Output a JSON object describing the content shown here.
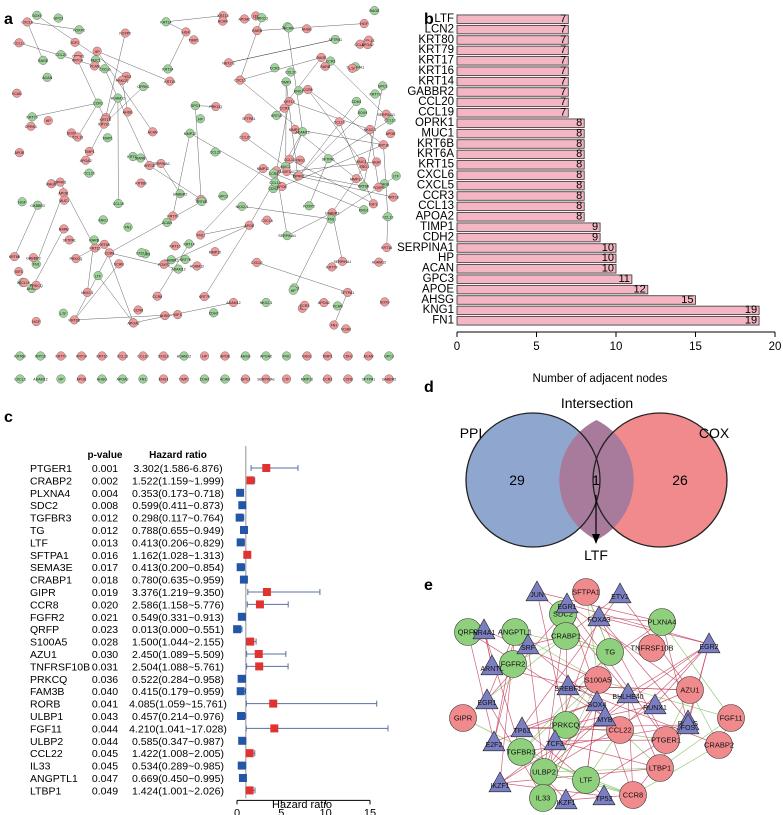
{
  "panels": {
    "a": "a",
    "b": "b",
    "c": "c",
    "d": "d",
    "e": "e"
  },
  "network_a": {
    "labels": [
      "KRT6B",
      "KRT15",
      "KRT79",
      "KRT14",
      "KRT16",
      "CCL13",
      "CCL20",
      "CXCL6",
      "ADAM12",
      "HP",
      "APOE",
      "AHSG",
      "APOA2",
      "FN1",
      "KNG1",
      "TIMP1",
      "CDH2",
      "ACAN",
      "GPC3",
      "SERPINA1",
      "LTF",
      "MMP12",
      "CCR3",
      "CCR8",
      "SFTPA1",
      "GABBR2",
      "RAGE",
      "CCL19",
      "OPRK1",
      "MUC1",
      "HGF",
      "NKX2-1",
      "RARB",
      "FOXP2",
      "PRKCQ",
      "SOX9",
      "IGF1",
      "VCAN"
    ]
  },
  "chart_data": [
    {
      "type": "bar",
      "orientation": "horizontal",
      "title": "",
      "xlabel": "Number of adjacent nodes",
      "ylabel": "",
      "xlim": [
        0,
        20
      ],
      "xticks": [
        0,
        5,
        10,
        15,
        20
      ],
      "categories": [
        "LTF",
        "LCN2",
        "KRT80",
        "KRT79",
        "KRT17",
        "KRT16",
        "KRT14",
        "GABBR2",
        "CCL20",
        "CCL19",
        "OPRK1",
        "MUC1",
        "KRT6B",
        "KRT6A",
        "KRT15",
        "CXCL6",
        "CXCL5",
        "CCR3",
        "CCL13",
        "APOA2",
        "TIMP1",
        "CDH2",
        "SERPINA1",
        "HP",
        "ACAN",
        "GPC3",
        "APOE",
        "AHSG",
        "KNG1",
        "FN1"
      ],
      "values": [
        7,
        7,
        7,
        7,
        7,
        7,
        7,
        7,
        7,
        7,
        8,
        8,
        8,
        8,
        8,
        8,
        8,
        8,
        8,
        8,
        9,
        9,
        10,
        10,
        10,
        11,
        12,
        15,
        19,
        19
      ],
      "color": "#f4b6c2"
    },
    {
      "type": "forest",
      "xlabel": "Hazard ratio",
      "xlim": [
        0,
        15
      ],
      "xticks": [
        0,
        5,
        10,
        15
      ],
      "col_pvalue": "p-value",
      "col_hr": "Hazard ratio",
      "reference_line": 1,
      "rows": [
        {
          "gene": "PTGER1",
          "p": "0.001",
          "label": "3.302(1.586-6.876)",
          "hr": 3.302,
          "lo": 1.586,
          "hi": 6.876
        },
        {
          "gene": "CRABP2",
          "p": "0.002",
          "label": "1.522(1.159~1.999)",
          "hr": 1.522,
          "lo": 1.159,
          "hi": 1.999
        },
        {
          "gene": "PLXNA4",
          "p": "0.004",
          "label": "0.353(0.173~0.718)",
          "hr": 0.353,
          "lo": 0.173,
          "hi": 0.718
        },
        {
          "gene": "SDC2",
          "p": "0.008",
          "label": "0.599(0.411~0.873)",
          "hr": 0.599,
          "lo": 0.411,
          "hi": 0.873
        },
        {
          "gene": "TGFBR3",
          "p": "0.012",
          "label": "0.298(0.117~0.764)",
          "hr": 0.298,
          "lo": 0.117,
          "hi": 0.764
        },
        {
          "gene": "TG",
          "p": "0.012",
          "label": "0.788(0.655~0.949)",
          "hr": 0.788,
          "lo": 0.655,
          "hi": 0.949
        },
        {
          "gene": "LTF",
          "p": "0.013",
          "label": "0.413(0.206~0.829)",
          "hr": 0.413,
          "lo": 0.206,
          "hi": 0.829
        },
        {
          "gene": "SFTPA1",
          "p": "0.016",
          "label": "1.162(1.028~1.313)",
          "hr": 1.162,
          "lo": 1.028,
          "hi": 1.313
        },
        {
          "gene": "SEMA3E",
          "p": "0.017",
          "label": "0.413(0.200~0.854)",
          "hr": 0.413,
          "lo": 0.2,
          "hi": 0.854
        },
        {
          "gene": "CRABP1",
          "p": "0.018",
          "label": "0.780(0.635~0.959)",
          "hr": 0.78,
          "lo": 0.635,
          "hi": 0.959
        },
        {
          "gene": "GIPR",
          "p": "0.019",
          "label": "3.376(1.219~9.350)",
          "hr": 3.376,
          "lo": 1.219,
          "hi": 9.35
        },
        {
          "gene": "CCR8",
          "p": "0.020",
          "label": "2.586(1.158~5.776)",
          "hr": 2.586,
          "lo": 1.158,
          "hi": 5.776
        },
        {
          "gene": "FGFR2",
          "p": "0.021",
          "label": "0.549(0.331~0.913)",
          "hr": 0.549,
          "lo": 0.331,
          "hi": 0.913
        },
        {
          "gene": "QRFP",
          "p": "0.023",
          "label": "0.013(0.000~0.551)",
          "hr": 0.013,
          "lo": 0.0,
          "hi": 0.551
        },
        {
          "gene": "S100A5",
          "p": "0.028",
          "label": "1.500(1.044~2.155)",
          "hr": 1.5,
          "lo": 1.044,
          "hi": 2.155
        },
        {
          "gene": "AZU1",
          "p": "0.030",
          "label": "2.450(1.089~5.509)",
          "hr": 2.45,
          "lo": 1.089,
          "hi": 5.509
        },
        {
          "gene": "TNFRSF10B",
          "p": "0.031",
          "label": "2.504(1.088~5.761)",
          "hr": 2.504,
          "lo": 1.088,
          "hi": 5.761
        },
        {
          "gene": "PRKCQ",
          "p": "0.036",
          "label": "0.522(0.284~0.958)",
          "hr": 0.522,
          "lo": 0.284,
          "hi": 0.958
        },
        {
          "gene": "FAM3B",
          "p": "0.040",
          "label": "0.415(0.179~0.959)",
          "hr": 0.415,
          "lo": 0.179,
          "hi": 0.959
        },
        {
          "gene": "RORB",
          "p": "0.041",
          "label": "4.085(1.059~15.761)",
          "hr": 4.085,
          "lo": 1.059,
          "hi": 15.761
        },
        {
          "gene": "ULBP1",
          "p": "0.043",
          "label": "0.457(0.214~0.976)",
          "hr": 0.457,
          "lo": 0.214,
          "hi": 0.976
        },
        {
          "gene": "FGF11",
          "p": "0.044",
          "label": "4.210(1.041~17.028)",
          "hr": 4.21,
          "lo": 1.041,
          "hi": 17.028
        },
        {
          "gene": "ULBP2",
          "p": "0.044",
          "label": "0.585(0.347~0.987)",
          "hr": 0.585,
          "lo": 0.347,
          "hi": 0.987
        },
        {
          "gene": "CCL22",
          "p": "0.045",
          "label": "1.422(1.008~2.005)",
          "hr": 1.422,
          "lo": 1.008,
          "hi": 2.005
        },
        {
          "gene": "IL33",
          "p": "0.045",
          "label": "0.534(0.289~0.985)",
          "hr": 0.534,
          "lo": 0.289,
          "hi": 0.985
        },
        {
          "gene": "ANGPTL1",
          "p": "0.047",
          "label": "0.669(0.450~0.995)",
          "hr": 0.669,
          "lo": 0.45,
          "hi": 0.995
        },
        {
          "gene": "LTBP1",
          "p": "0.049",
          "label": "1.424(1.001~2.026)",
          "hr": 1.424,
          "lo": 1.001,
          "hi": 2.026
        }
      ],
      "risk_color": "#e0322f",
      "protective_color": "#2356a6"
    },
    {
      "type": "venn",
      "title": "Intersection",
      "sets": [
        {
          "name": "PPI",
          "only": "29",
          "color": "#8fa6cf"
        },
        {
          "name": "COX",
          "only": "26",
          "color": "#f08a8d"
        }
      ],
      "intersection": "1",
      "intersection_gene": "LTF"
    }
  ],
  "network_e": {
    "green": [
      "SDC2",
      "PLXNA4",
      "QRFP",
      "ANGPTL1",
      "CRABP1",
      "TG",
      "FGFR2",
      "PRKCQ",
      "TGFBR3",
      "ULBP2",
      "LTF",
      "IL33"
    ],
    "red": [
      "SFTPA1",
      "TNFRSF10B",
      "S100A5",
      "AZU1",
      "FGF11",
      "GIPR",
      "CRABP2",
      "CCL22",
      "PTGER1",
      "LTBP1",
      "CCR8"
    ],
    "triangles": [
      "JUN",
      "ETV1",
      "NR4A1",
      "EGR1",
      "ARNTL",
      "FOXA3",
      "SRF",
      "EGR2",
      "EGR1",
      "SREBF1",
      "RUNX1",
      "RXRG",
      "BHLHE40",
      "SOX4",
      "TP63",
      "FOS",
      "E2F2",
      "TCF3",
      "IKZF1",
      "MYB",
      "IKZF1",
      "TP53"
    ]
  }
}
